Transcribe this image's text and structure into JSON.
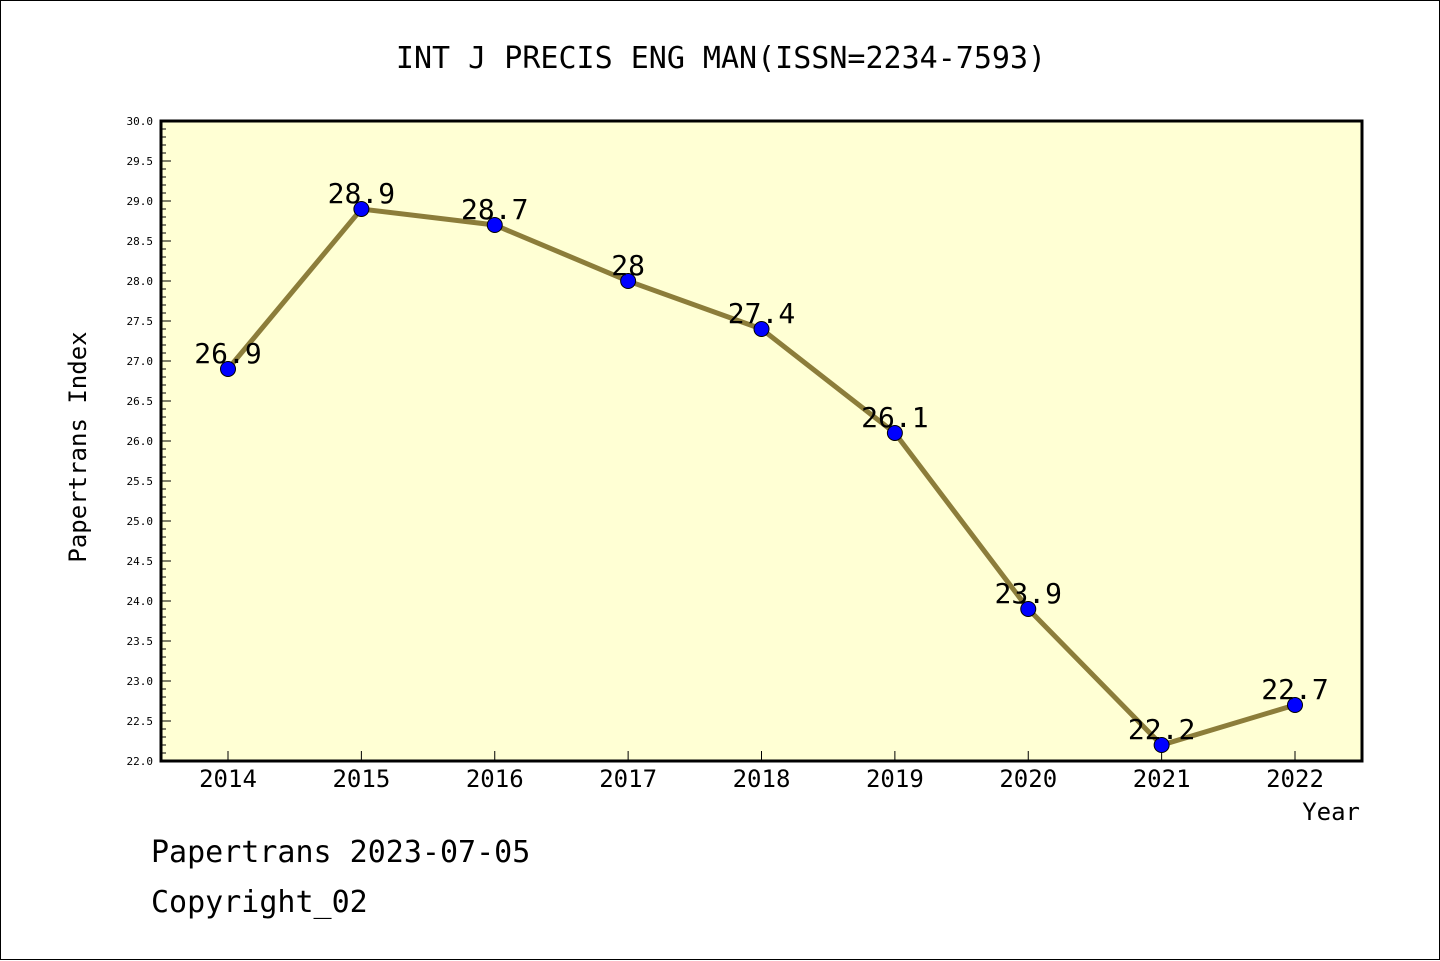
{
  "footer": {
    "line1": "Papertrans 2023-07-05",
    "line2": "Copyright_02"
  },
  "chart_data": {
    "type": "line",
    "title": "INT J PRECIS ENG MAN(ISSN=2234-7593)",
    "xlabel": "Year",
    "ylabel": "Papertrans Index",
    "categories": [
      "2014",
      "2015",
      "2016",
      "2017",
      "2018",
      "2019",
      "2020",
      "2021",
      "2022"
    ],
    "values": [
      26.9,
      28.9,
      28.7,
      28,
      27.4,
      26.1,
      23.9,
      22.2,
      22.7
    ],
    "data_labels": [
      "26.9",
      "28.9",
      "28.7",
      "28",
      "27.4",
      "26.1",
      "23.9",
      "22.2",
      "22.7"
    ],
    "ylim": [
      22.0,
      30.0
    ],
    "yticks": [
      "22.0",
      "22.5",
      "23.0",
      "23.5",
      "24.0",
      "24.5",
      "25.0",
      "25.5",
      "26.0",
      "26.5",
      "27.0",
      "27.5",
      "28.0",
      "28.5",
      "29.0",
      "29.5",
      "30.0"
    ],
    "grid": false,
    "colors": {
      "plot_bg": "#ffffd4",
      "line": "#8c7d3a",
      "marker": "#0000ff"
    }
  }
}
